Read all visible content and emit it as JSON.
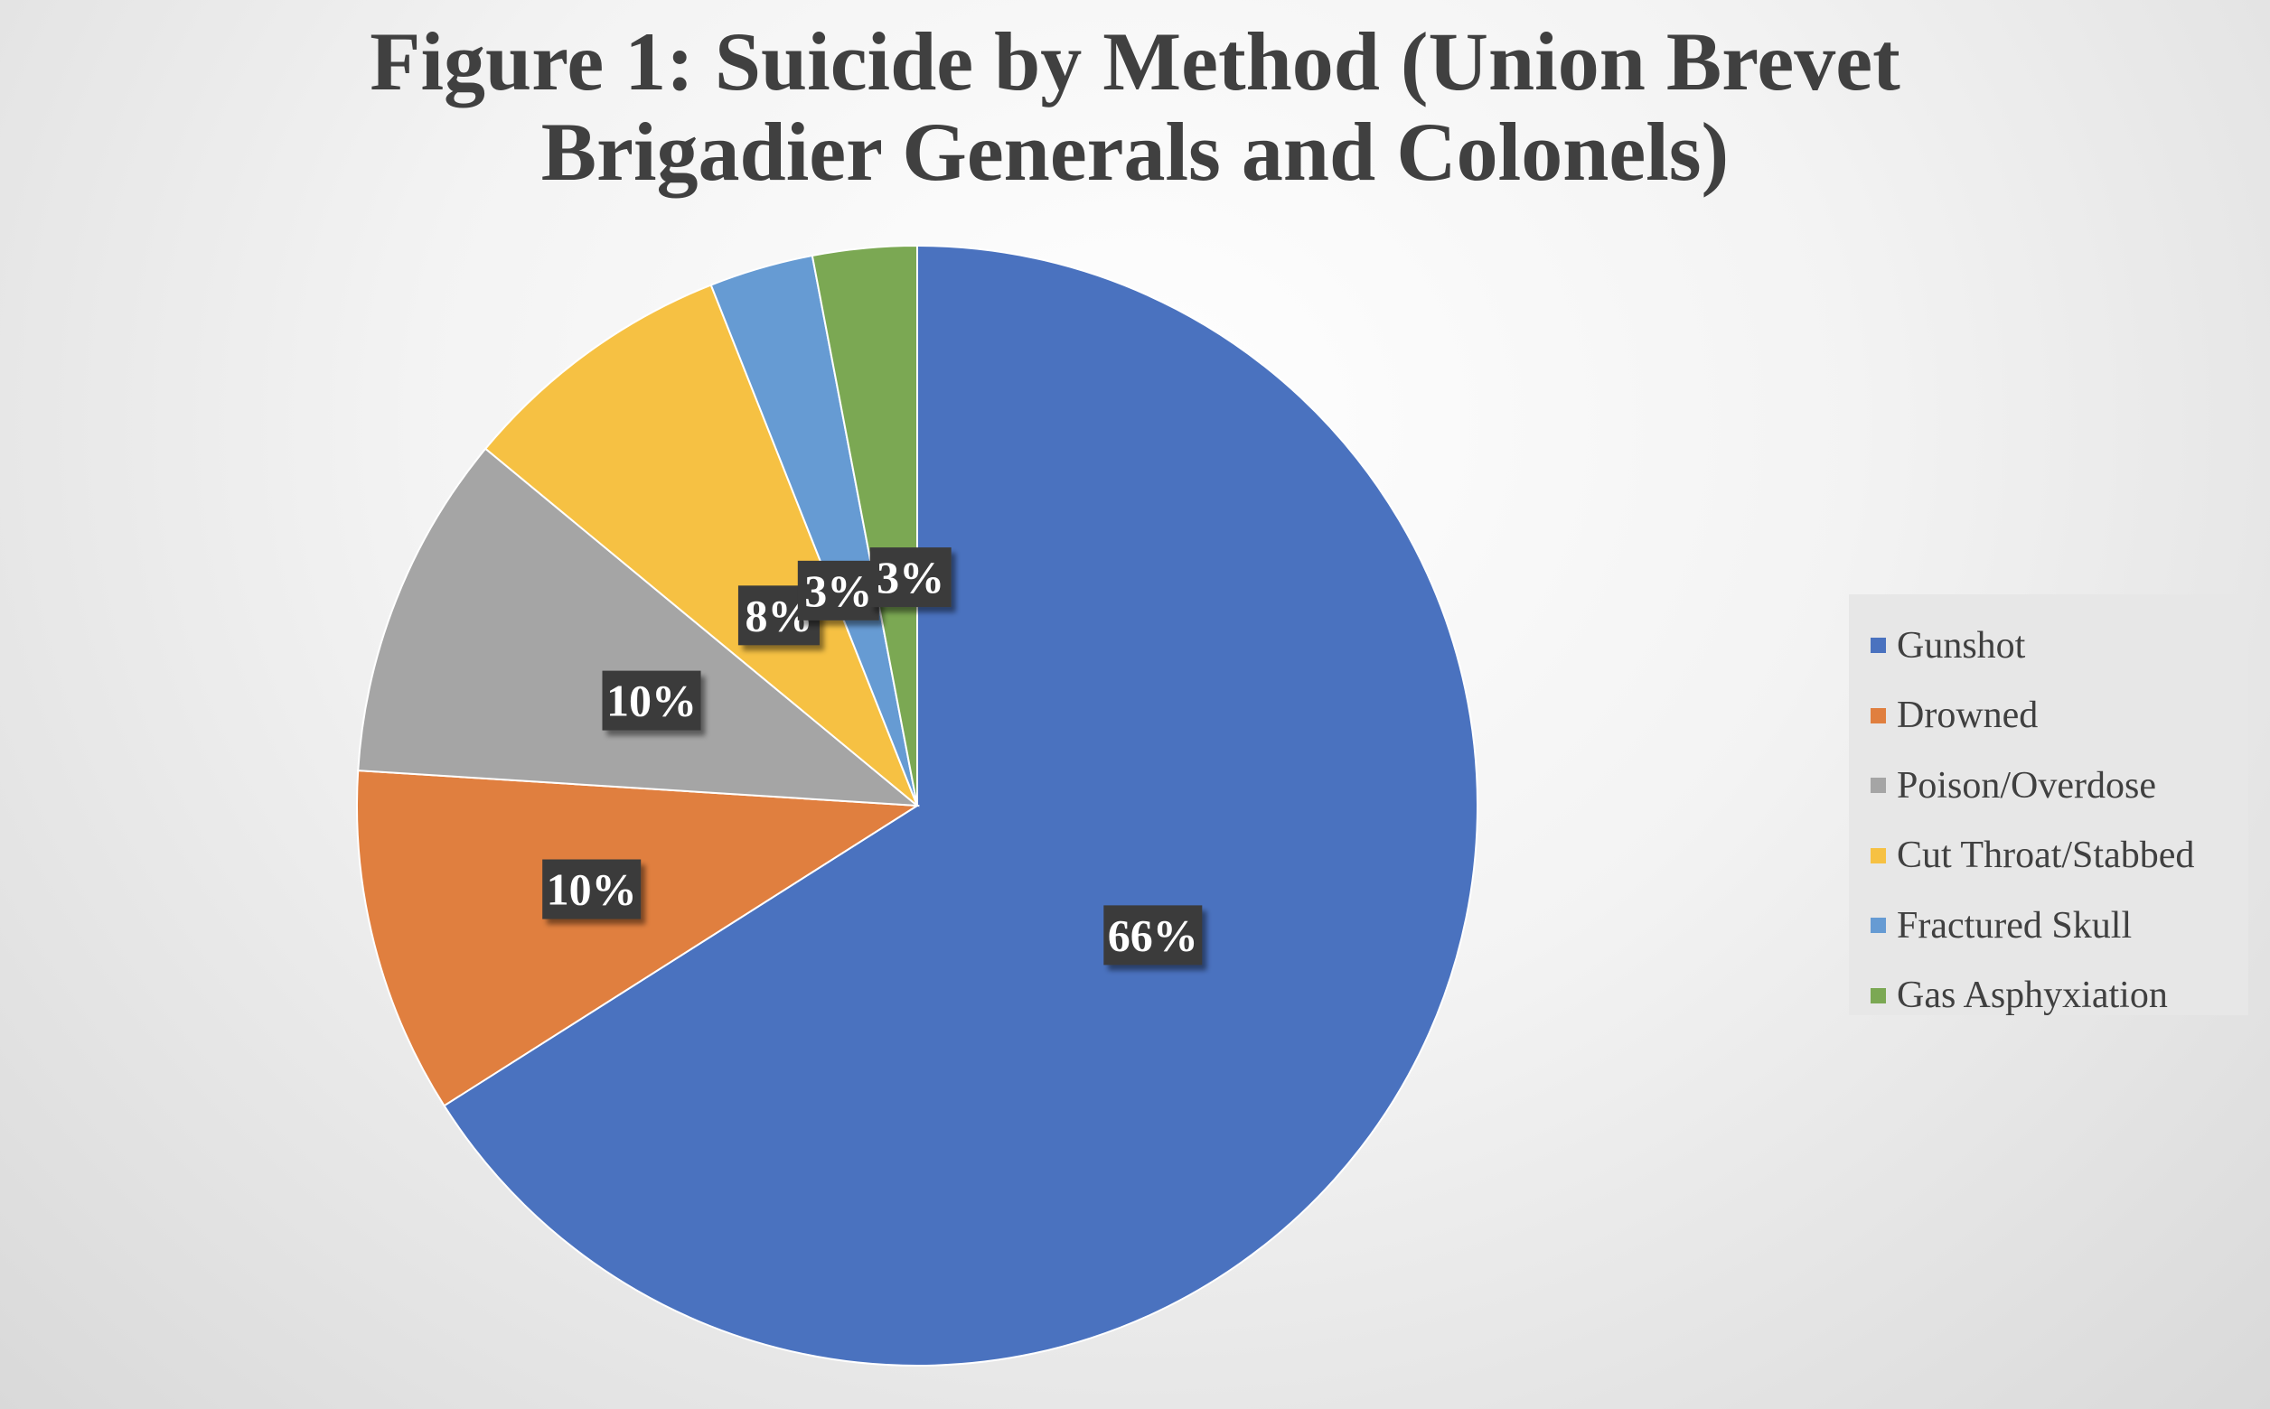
{
  "chart_data": {
    "type": "pie",
    "title_lines": [
      "Figure 1: Suicide by Method (Union Brevet",
      "Brigadier Generals and Colonels)"
    ],
    "slices": [
      {
        "label": "Gunshot",
        "value": 66,
        "display": "66%",
        "color": "#4a72bf"
      },
      {
        "label": "Drowned",
        "value": 10,
        "display": "10%",
        "color": "#e07f3f"
      },
      {
        "label": "Poison/Overdose",
        "value": 10,
        "display": "10%",
        "color": "#a5a5a5"
      },
      {
        "label": "Cut Throat/Stabbed",
        "value": 8,
        "display": "8%",
        "color": "#f6c143"
      },
      {
        "label": "Fractured Skull",
        "value": 3,
        "display": "3%",
        "color": "#669bd3"
      },
      {
        "label": "Gas Asphyxiation",
        "value": 3,
        "display": "3%",
        "color": "#7ba853"
      }
    ],
    "legend_position": "right"
  }
}
